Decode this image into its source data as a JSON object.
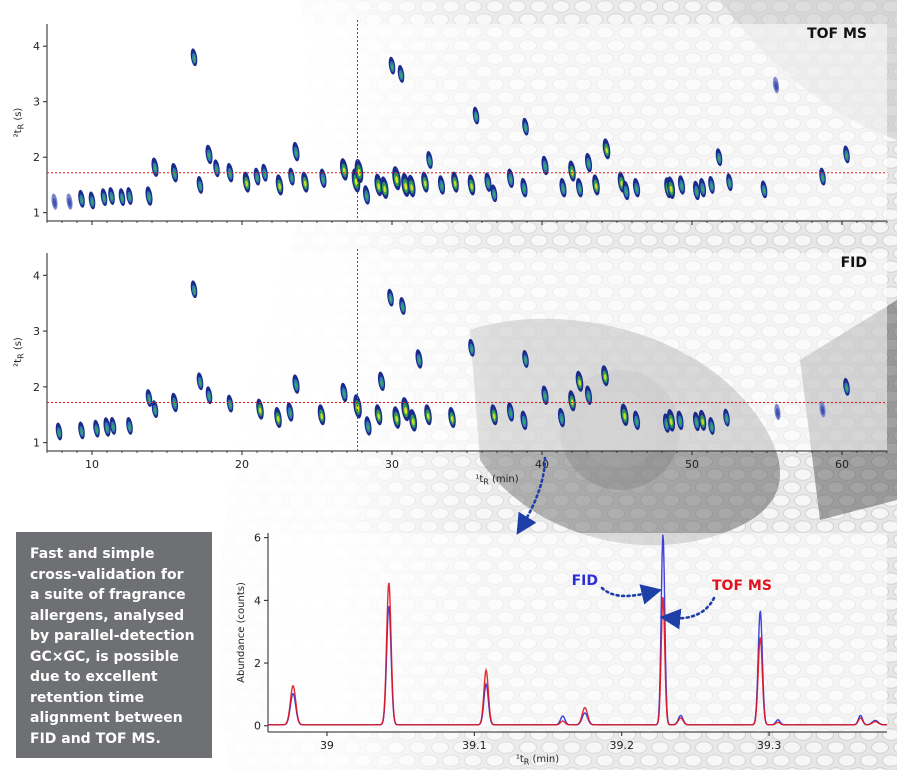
{
  "colors": {
    "fid": "#2b2fd6",
    "tof": "#e0141e",
    "crosshair": "#d81c1c",
    "arrow": "#1f3fa8",
    "callout_bg": "#6e7073",
    "photo_bg": "#d9d9d9"
  },
  "callout": {
    "lines": [
      "Fast and simple",
      "cross-validation for",
      "a suite of fragrance",
      "allergens, analysed",
      "by parallel-detection",
      "GC×GC, is possible",
      "due to excellent",
      "retention time",
      "alignment between",
      "FID and TOF MS."
    ]
  },
  "chart_data": [
    {
      "type": "scatter",
      "title": "TOF MS",
      "xlabel": "¹t_R (min)",
      "ylabel": "²t_R (s)",
      "xlim": [
        7,
        63
      ],
      "ylim": [
        0.85,
        4.4
      ],
      "yticks": [
        1,
        2,
        3,
        4
      ],
      "crosshair": {
        "x": 27.7,
        "y": 1.72
      },
      "x": [
        7.5,
        8.5,
        9.3,
        10,
        10.8,
        11.3,
        12,
        12.5,
        13.8,
        14.2,
        15.5,
        16.8,
        17.2,
        17.8,
        18.3,
        19.2,
        20.3,
        21,
        21.5,
        22.5,
        23.3,
        23.6,
        24.2,
        25.4,
        26.8,
        27.6,
        27.8,
        28.3,
        29.1,
        29.5,
        30,
        30.3,
        30.6,
        30.9,
        31.3,
        32.2,
        32.5,
        33.3,
        34.2,
        35.3,
        35.6,
        36.4,
        36.8,
        37.9,
        38.8,
        38.9,
        40.2,
        41.4,
        42,
        42.5,
        43.1,
        43.6,
        44.3,
        45.3,
        45.6,
        46.3,
        48.4,
        48.6,
        49.3,
        50.3,
        50.7,
        51.3,
        51.8,
        52.5,
        54.8,
        55.6,
        58.7,
        60.3
      ],
      "y": [
        1.2,
        1.2,
        1.25,
        1.22,
        1.28,
        1.3,
        1.28,
        1.3,
        1.3,
        1.82,
        1.72,
        3.8,
        1.5,
        2.05,
        1.8,
        1.72,
        1.55,
        1.65,
        1.72,
        1.5,
        1.65,
        2.1,
        1.55,
        1.62,
        1.78,
        1.58,
        1.75,
        1.32,
        1.5,
        1.45,
        3.65,
        1.62,
        3.5,
        1.5,
        1.48,
        1.55,
        1.95,
        1.5,
        1.55,
        1.5,
        2.75,
        1.55,
        1.35,
        1.62,
        1.45,
        2.55,
        1.85,
        1.45,
        1.75,
        1.45,
        1.9,
        1.5,
        2.15,
        1.55,
        1.4,
        1.45,
        1.45,
        1.45,
        1.5,
        1.4,
        1.45,
        1.5,
        2.0,
        1.55,
        1.42,
        3.3,
        1.65,
        2.05
      ],
      "z": [
        0.4,
        0.4,
        0.5,
        0.5,
        0.5,
        0.5,
        0.5,
        0.5,
        0.6,
        0.6,
        0.6,
        0.5,
        0.5,
        0.6,
        0.5,
        0.6,
        0.7,
        0.5,
        0.5,
        0.7,
        0.5,
        0.6,
        0.7,
        0.6,
        0.8,
        0.9,
        0.9,
        0.6,
        0.8,
        0.8,
        0.5,
        0.9,
        0.5,
        0.9,
        0.8,
        0.7,
        0.5,
        0.6,
        0.7,
        0.7,
        0.5,
        0.6,
        0.5,
        0.6,
        0.6,
        0.5,
        0.6,
        0.6,
        0.7,
        0.6,
        0.6,
        0.7,
        0.7,
        0.7,
        0.6,
        0.6,
        0.7,
        0.8,
        0.6,
        0.6,
        0.6,
        0.5,
        0.5,
        0.5,
        0.5,
        0.4,
        0.5,
        0.5
      ],
      "xticks": [
        10,
        20,
        30,
        40,
        50,
        60
      ]
    },
    {
      "type": "scatter",
      "title": "FID",
      "xlabel": "¹t_R (min)",
      "ylabel": "²t_R (s)",
      "xlim": [
        7,
        63
      ],
      "ylim": [
        0.85,
        4.4
      ],
      "yticks": [
        1,
        2,
        3,
        4
      ],
      "xticks": [
        10,
        20,
        30,
        40,
        50,
        60
      ],
      "crosshair": {
        "x": 27.7,
        "y": 1.72
      },
      "x": [
        7.8,
        9.3,
        10.3,
        11,
        11.4,
        12.5,
        13.8,
        14.2,
        15.5,
        16.8,
        17.2,
        17.8,
        19.2,
        21.2,
        22.4,
        23.2,
        23.6,
        25.3,
        26.8,
        27.7,
        28.4,
        29.1,
        29.3,
        29.9,
        30.3,
        30.7,
        30.9,
        31.4,
        31.8,
        32.4,
        34,
        35.3,
        36.8,
        37.9,
        38.8,
        38.9,
        40.2,
        41.3,
        42,
        42.5,
        43.1,
        44.2,
        45.5,
        46.3,
        48.3,
        48.6,
        49.2,
        50.3,
        50.7,
        51.3,
        52.3,
        55.7,
        58.7,
        60.3
      ],
      "y": [
        1.2,
        1.22,
        1.25,
        1.28,
        1.3,
        1.3,
        1.8,
        1.6,
        1.72,
        3.75,
        2.1,
        1.85,
        1.7,
        1.6,
        1.45,
        1.55,
        2.05,
        1.5,
        1.9,
        1.65,
        1.3,
        1.5,
        2.1,
        3.6,
        1.45,
        3.45,
        1.6,
        1.4,
        2.5,
        1.5,
        1.45,
        2.7,
        1.5,
        1.55,
        1.4,
        2.5,
        1.85,
        1.45,
        1.75,
        2.1,
        1.85,
        2.2,
        1.5,
        1.4,
        1.35,
        1.4,
        1.4,
        1.38,
        1.4,
        1.3,
        1.45,
        1.55,
        1.6,
        2.0
      ],
      "z": [
        0.5,
        0.5,
        0.5,
        0.6,
        0.5,
        0.5,
        0.5,
        0.5,
        0.6,
        0.5,
        0.5,
        0.5,
        0.5,
        0.7,
        0.7,
        0.6,
        0.6,
        0.7,
        0.6,
        0.9,
        0.6,
        0.7,
        0.6,
        0.5,
        0.8,
        0.5,
        0.9,
        0.8,
        0.6,
        0.7,
        0.7,
        0.5,
        0.7,
        0.6,
        0.6,
        0.5,
        0.6,
        0.6,
        0.7,
        0.7,
        0.6,
        0.7,
        0.8,
        0.6,
        0.6,
        0.8,
        0.6,
        0.6,
        0.7,
        0.5,
        0.5,
        0.4,
        0.4,
        0.5
      ]
    },
    {
      "type": "line",
      "xlabel": "¹t_R (min)",
      "ylabel": "Abundance (counts)",
      "xlim": [
        38.96,
        39.38
      ],
      "ylim": [
        -0.2,
        6.15
      ],
      "xticks": [
        39.0,
        39.1,
        39.2,
        39.3
      ],
      "yticks": [
        0,
        2,
        4,
        6
      ],
      "peaks_x": [
        38.977,
        39.042,
        39.108,
        39.16,
        39.175,
        39.228,
        39.24,
        39.294,
        39.306,
        39.362,
        39.372
      ],
      "peaks_w": [
        0.0018,
        0.0015,
        0.0015,
        0.0015,
        0.0018,
        0.0012,
        0.0016,
        0.0014,
        0.0014,
        0.0014,
        0.002
      ],
      "series": [
        {
          "name": "FID",
          "color": "#2b2fd6",
          "values": [
            1.0,
            3.8,
            1.3,
            0.28,
            0.38,
            6.1,
            0.3,
            3.65,
            0.16,
            0.3,
            0.14
          ]
        },
        {
          "name": "TOF MS",
          "color": "#e0141e",
          "values": [
            1.25,
            4.55,
            1.75,
            0.12,
            0.55,
            4.1,
            0.22,
            2.8,
            0.08,
            0.22,
            0.1
          ]
        }
      ]
    }
  ]
}
